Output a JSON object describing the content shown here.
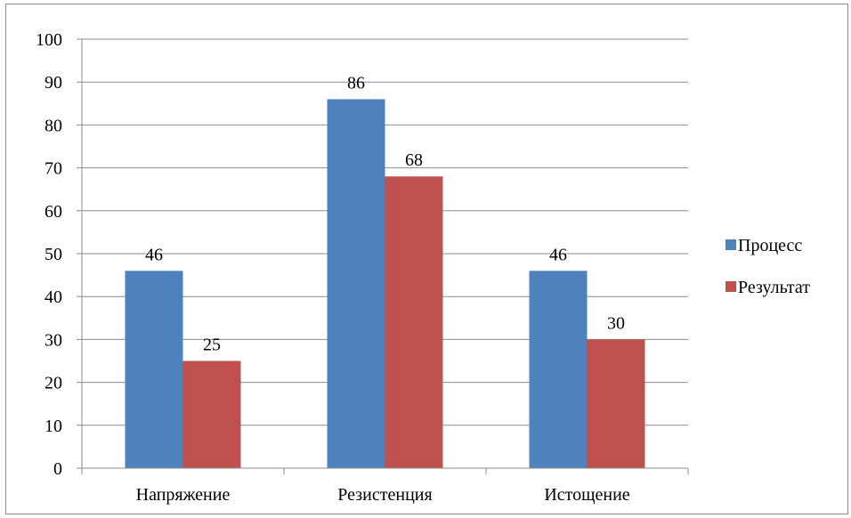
{
  "chart_data": {
    "type": "bar",
    "categories": [
      "Напряжение",
      "Резистенция",
      "Истощение"
    ],
    "series": [
      {
        "name": "Процесс",
        "values": [
          46,
          86,
          46
        ],
        "color": "#4f81bd"
      },
      {
        "name": "Результат",
        "values": [
          25,
          68,
          30
        ],
        "color": "#c0504d"
      }
    ],
    "title": "",
    "xlabel": "",
    "ylabel": "",
    "ylim": [
      0,
      100
    ],
    "yticks": [
      0,
      10,
      20,
      30,
      40,
      50,
      60,
      70,
      80,
      90,
      100
    ],
    "grid": true,
    "legend": "right",
    "data_labels": true
  }
}
